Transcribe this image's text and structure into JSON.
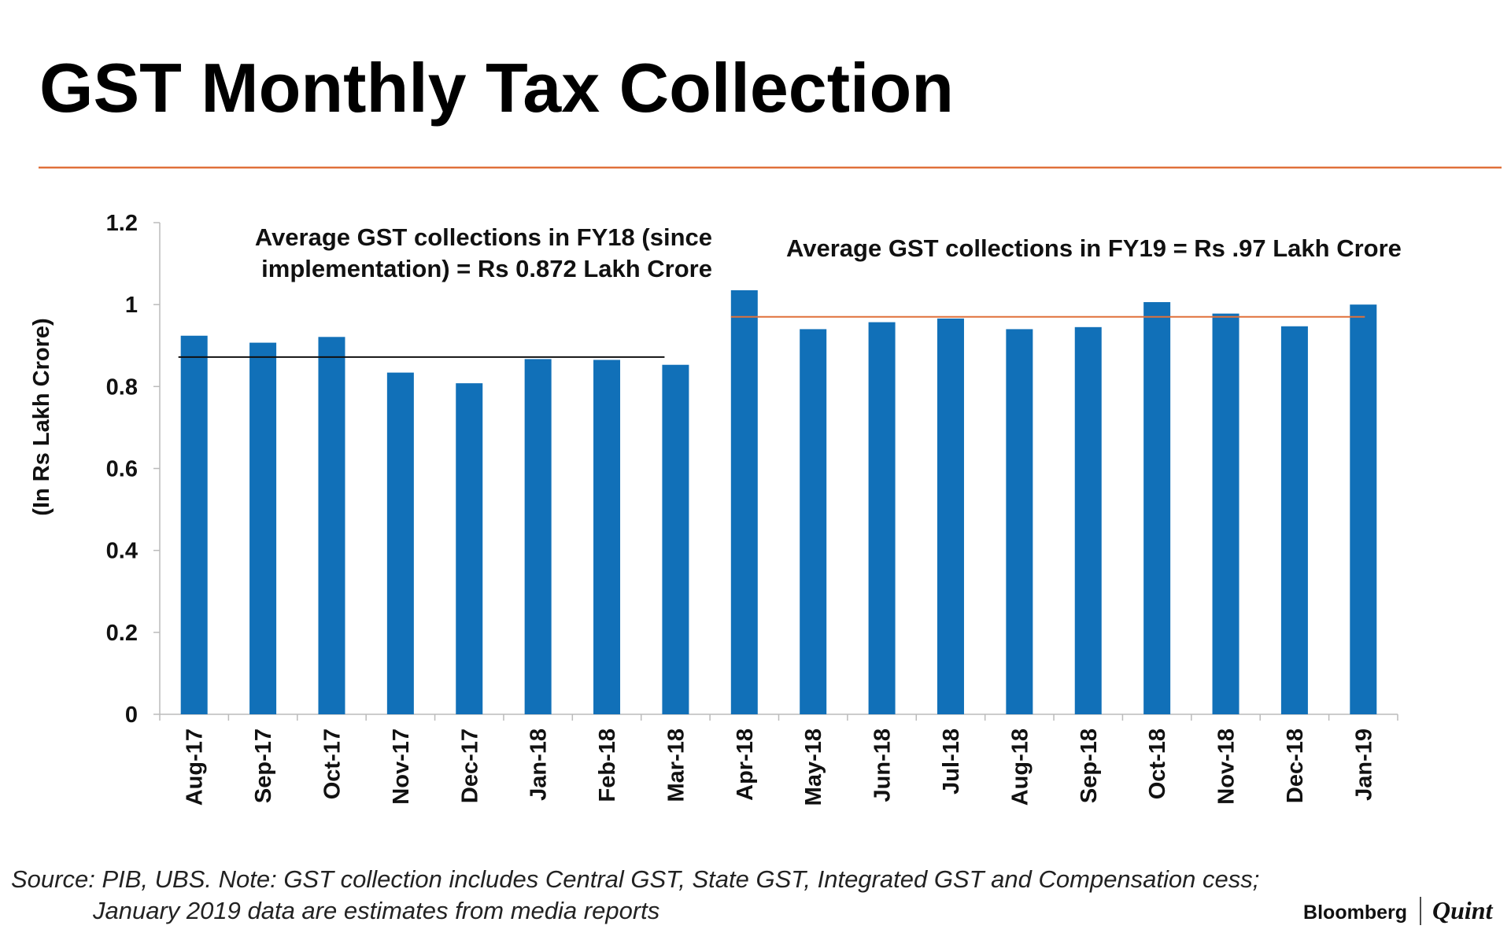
{
  "chart_data": {
    "type": "bar",
    "title": "GST Monthly Tax Collection",
    "ylabel": "(In Rs Lakh Crore)",
    "xlabel": "",
    "ylim": [
      0,
      1.2
    ],
    "yticks": [
      "0",
      "0.2",
      "0.4",
      "0.6",
      "0.8",
      "1",
      "1.2"
    ],
    "ytick_values": [
      0,
      0.2,
      0.4,
      0.6,
      0.8,
      1.0,
      1.2
    ],
    "categories": [
      "Aug-17",
      "Sep-17",
      "Oct-17",
      "Nov-17",
      "Dec-17",
      "Jan-18",
      "Feb-18",
      "Mar-18",
      "Apr-18",
      "May-18",
      "Jun-18",
      "Jul-18",
      "Aug-18",
      "Sep-18",
      "Oct-18",
      "Nov-18",
      "Dec-18",
      "Jan-19"
    ],
    "values": [
      0.924,
      0.907,
      0.921,
      0.834,
      0.808,
      0.867,
      0.865,
      0.853,
      1.035,
      0.94,
      0.957,
      0.966,
      0.94,
      0.945,
      1.006,
      0.978,
      0.947,
      1.0
    ],
    "bar_color": "#1170b8",
    "grid": false,
    "reference_lines": [
      {
        "name": "FY18 average",
        "value": 0.872,
        "from": 0,
        "to": 7,
        "color": "#111111",
        "label_lines": [
          "Average GST collections in  FY18 (since",
          "implementation) = Rs 0.872 Lakh Crore"
        ]
      },
      {
        "name": "FY19 average",
        "value": 0.97,
        "from": 8,
        "to": 17,
        "color": "#e0703a",
        "label_lines": [
          "Average GST collections in  FY19 = Rs .97 Lakh Crore"
        ]
      }
    ]
  },
  "accent_color": "#e0703a",
  "source_lines": [
    "Source: PIB, UBS. Note: GST collection includes Central GST, State GST, Integrated GST and Compensation cess;",
    "January 2019 data are estimates from media reports"
  ],
  "logo": {
    "left": "Bloomberg",
    "right": "Quint"
  }
}
